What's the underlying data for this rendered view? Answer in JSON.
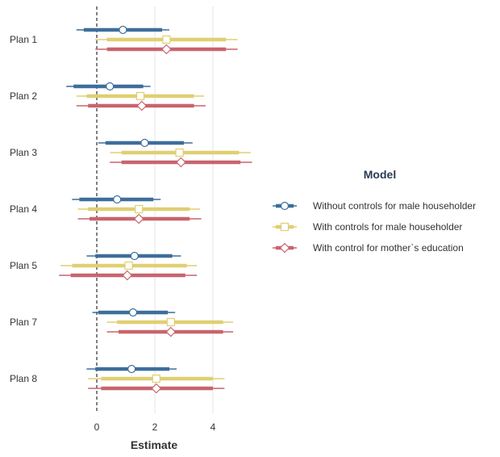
{
  "chart_data": {
    "type": "forest",
    "xlabel": "Estimate",
    "ylabel": "",
    "xlim": [
      -1.35,
      5.7
    ],
    "xticks": [
      0,
      2,
      4
    ],
    "categories": [
      "Plan 1",
      "Plan 2",
      "Plan 3",
      "Plan 4",
      "Plan 5",
      "Plan 7",
      "Plan 8"
    ],
    "reference_line": 0,
    "legend": {
      "title": "Model",
      "placement": "right"
    },
    "series": [
      {
        "name": "Without controls for male householder",
        "color": "#3d6e9b",
        "marker": "circle",
        "estimates": [
          0.9,
          0.45,
          1.65,
          0.7,
          1.3,
          1.25,
          1.2
        ],
        "inner": [
          [
            -0.45,
            2.25
          ],
          [
            -0.8,
            1.6
          ],
          [
            0.3,
            3.0
          ],
          [
            -0.6,
            1.95
          ],
          [
            -0.05,
            2.6
          ],
          [
            0.05,
            2.45
          ],
          [
            -0.05,
            2.5
          ]
        ],
        "outer": [
          [
            -0.7,
            2.5
          ],
          [
            -1.05,
            1.85
          ],
          [
            0.05,
            3.3
          ],
          [
            -0.85,
            2.2
          ],
          [
            -0.35,
            2.9
          ],
          [
            -0.15,
            2.7
          ],
          [
            -0.35,
            2.75
          ]
        ]
      },
      {
        "name": "With controls for male householder",
        "color": "#e0cf72",
        "marker": "square",
        "estimates": [
          2.4,
          1.5,
          2.85,
          1.45,
          1.1,
          2.55,
          2.05
        ],
        "inner": [
          [
            0.35,
            4.45
          ],
          [
            -0.35,
            3.35
          ],
          [
            0.85,
            4.9
          ],
          [
            -0.3,
            3.2
          ],
          [
            -0.85,
            3.1
          ],
          [
            0.7,
            4.35
          ],
          [
            0.15,
            4.0
          ]
        ],
        "outer": [
          [
            -0.05,
            4.85
          ],
          [
            -0.7,
            3.7
          ],
          [
            0.45,
            5.3
          ],
          [
            -0.65,
            3.55
          ],
          [
            -1.25,
            3.45
          ],
          [
            0.35,
            4.7
          ],
          [
            -0.3,
            4.4
          ]
        ]
      },
      {
        "name": "With control for mother`s education",
        "color": "#c8646e",
        "marker": "diamond",
        "estimates": [
          2.4,
          1.55,
          2.9,
          1.45,
          1.05,
          2.55,
          2.05
        ],
        "inner": [
          [
            0.35,
            4.45
          ],
          [
            -0.3,
            3.35
          ],
          [
            0.85,
            4.95
          ],
          [
            -0.25,
            3.2
          ],
          [
            -0.9,
            3.05
          ],
          [
            0.75,
            4.35
          ],
          [
            0.15,
            4.0
          ]
        ],
        "outer": [
          [
            -0.05,
            4.85
          ],
          [
            -0.7,
            3.75
          ],
          [
            0.45,
            5.35
          ],
          [
            -0.65,
            3.6
          ],
          [
            -1.3,
            3.45
          ],
          [
            0.35,
            4.7
          ],
          [
            -0.3,
            4.4
          ]
        ]
      }
    ]
  }
}
